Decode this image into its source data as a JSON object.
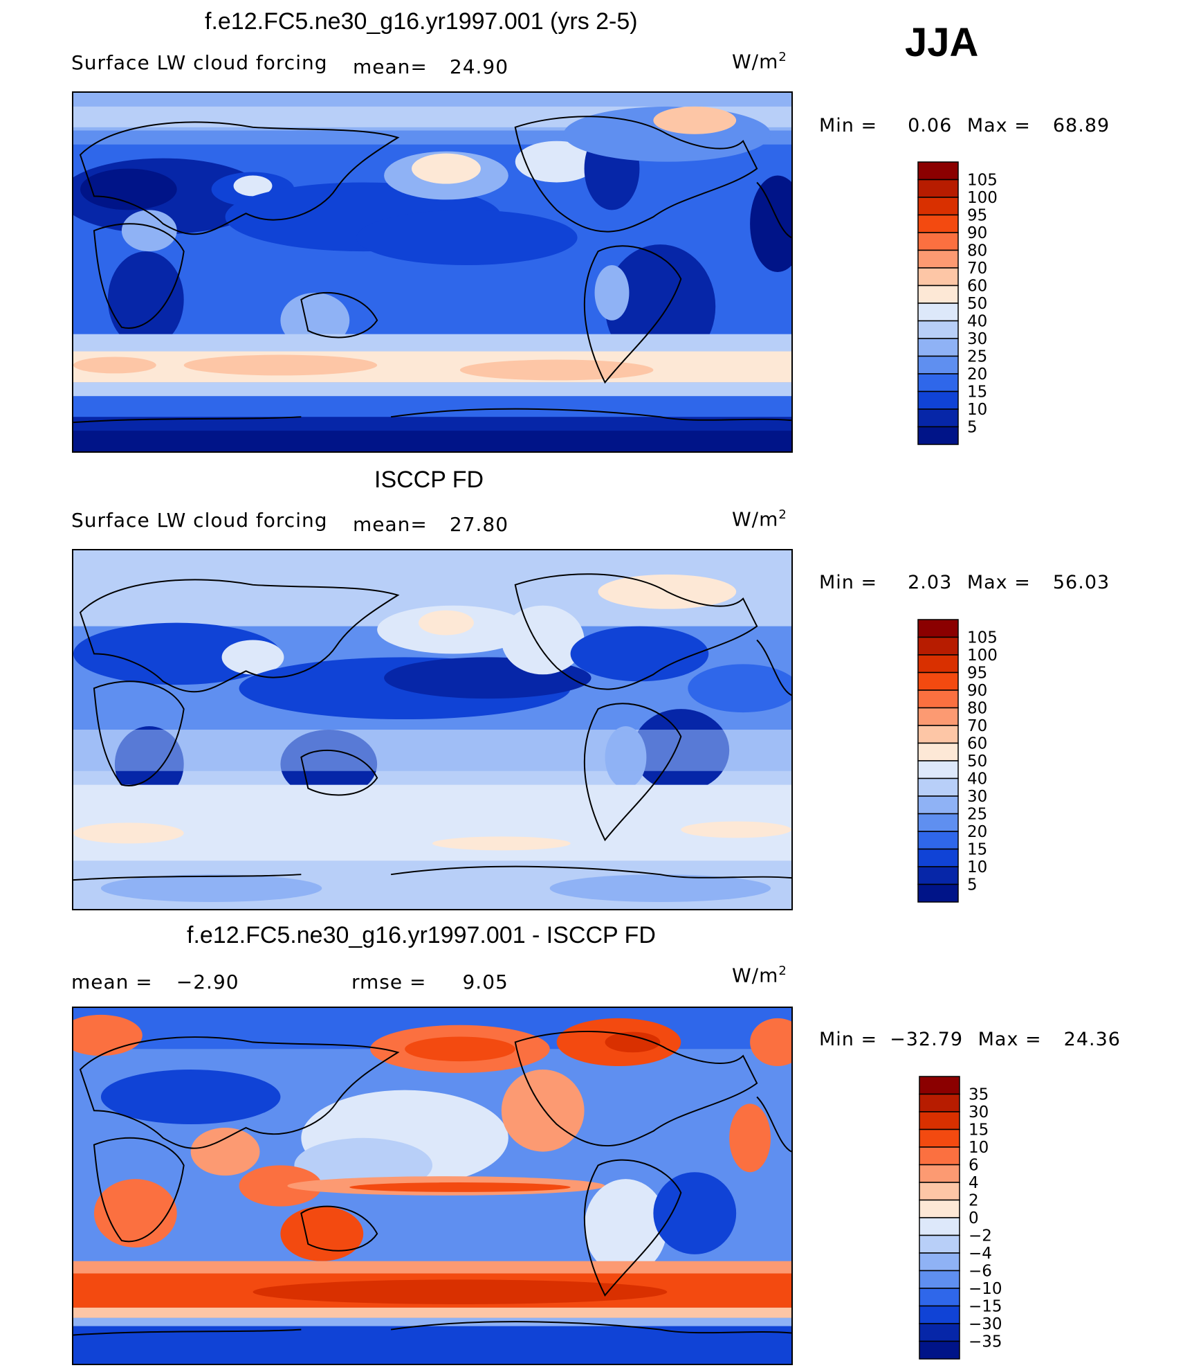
{
  "season": "JJA",
  "panels": [
    {
      "title": "f.e12.FC5.ne30_g16.yr1997.001 (yrs 2-5)",
      "variable": "Surface LW cloud forcing",
      "mean_label": "mean=",
      "mean_value": "24.90",
      "units": "W/m",
      "units_sup": "2",
      "min_label": "Min =",
      "min_value": "0.06",
      "max_label": "Max =",
      "max_value": "68.89"
    },
    {
      "title": "ISCCP FD",
      "variable": "Surface LW cloud forcing",
      "mean_label": "mean=",
      "mean_value": "27.80",
      "units": "W/m",
      "units_sup": "2",
      "min_label": "Min =",
      "min_value": "2.03",
      "max_label": "Max =",
      "max_value": "56.03"
    },
    {
      "title": "f.e12.FC5.ne30_g16.yr1997.001 - ISCCP FD",
      "mean_label": "mean =",
      "mean_value": "−2.90",
      "rmse_label": "rmse =",
      "rmse_value": "9.05",
      "units": "W/m",
      "units_sup": "2",
      "min_label": "Min =",
      "min_value": "−32.79",
      "max_label": "Max =",
      "max_value": "24.36"
    }
  ],
  "chart_data": [
    {
      "type": "heatmap",
      "title": "f.e12.FC5.ne30_g16.yr1997.001 (yrs 2-5)",
      "colorbar_levels": [
        "105",
        "100",
        "95",
        "90",
        "80",
        "70",
        "60",
        "50",
        "40",
        "30",
        "25",
        "20",
        "15",
        "10",
        "5"
      ],
      "colors": [
        "#8b0000",
        "#b71c00",
        "#d93000",
        "#f34a10",
        "#fb7040",
        "#fc9a72",
        "#fdc6a6",
        "#fde8d6",
        "#dde8fa",
        "#b8cff8",
        "#8fb2f5",
        "#5f8ff0",
        "#2f67ea",
        "#1043d6",
        "#0626a8",
        "#001488"
      ],
      "min": 0.06,
      "max": 68.89,
      "mean": 24.9
    },
    {
      "type": "heatmap",
      "title": "ISCCP FD",
      "colorbar_levels": [
        "105",
        "100",
        "95",
        "90",
        "80",
        "70",
        "60",
        "50",
        "40",
        "30",
        "25",
        "20",
        "15",
        "10",
        "5"
      ],
      "colors": [
        "#8b0000",
        "#b71c00",
        "#d93000",
        "#f34a10",
        "#fb7040",
        "#fc9a72",
        "#fdc6a6",
        "#fde8d6",
        "#dde8fa",
        "#b8cff8",
        "#8fb2f5",
        "#5f8ff0",
        "#2f67ea",
        "#1043d6",
        "#0626a8",
        "#001488"
      ],
      "min": 2.03,
      "max": 56.03,
      "mean": 27.8
    },
    {
      "type": "heatmap",
      "title": "f.e12.FC5.ne30_g16.yr1997.001 - ISCCP FD",
      "colorbar_levels": [
        "35",
        "30",
        "15",
        "10",
        "6",
        "4",
        "2",
        "0",
        "−2",
        "−4",
        "−6",
        "−10",
        "−15",
        "−30",
        "−35"
      ],
      "colors": [
        "#8b0000",
        "#b71c00",
        "#d93000",
        "#f34a10",
        "#fb7040",
        "#fc9a72",
        "#fdc6a6",
        "#fde8d6",
        "#dde8fa",
        "#b8cff8",
        "#8fb2f5",
        "#5f8ff0",
        "#2f67ea",
        "#1043d6",
        "#0626a8",
        "#001488"
      ],
      "min": -32.79,
      "max": 24.36,
      "mean": -2.9,
      "rmse": 9.05
    }
  ]
}
